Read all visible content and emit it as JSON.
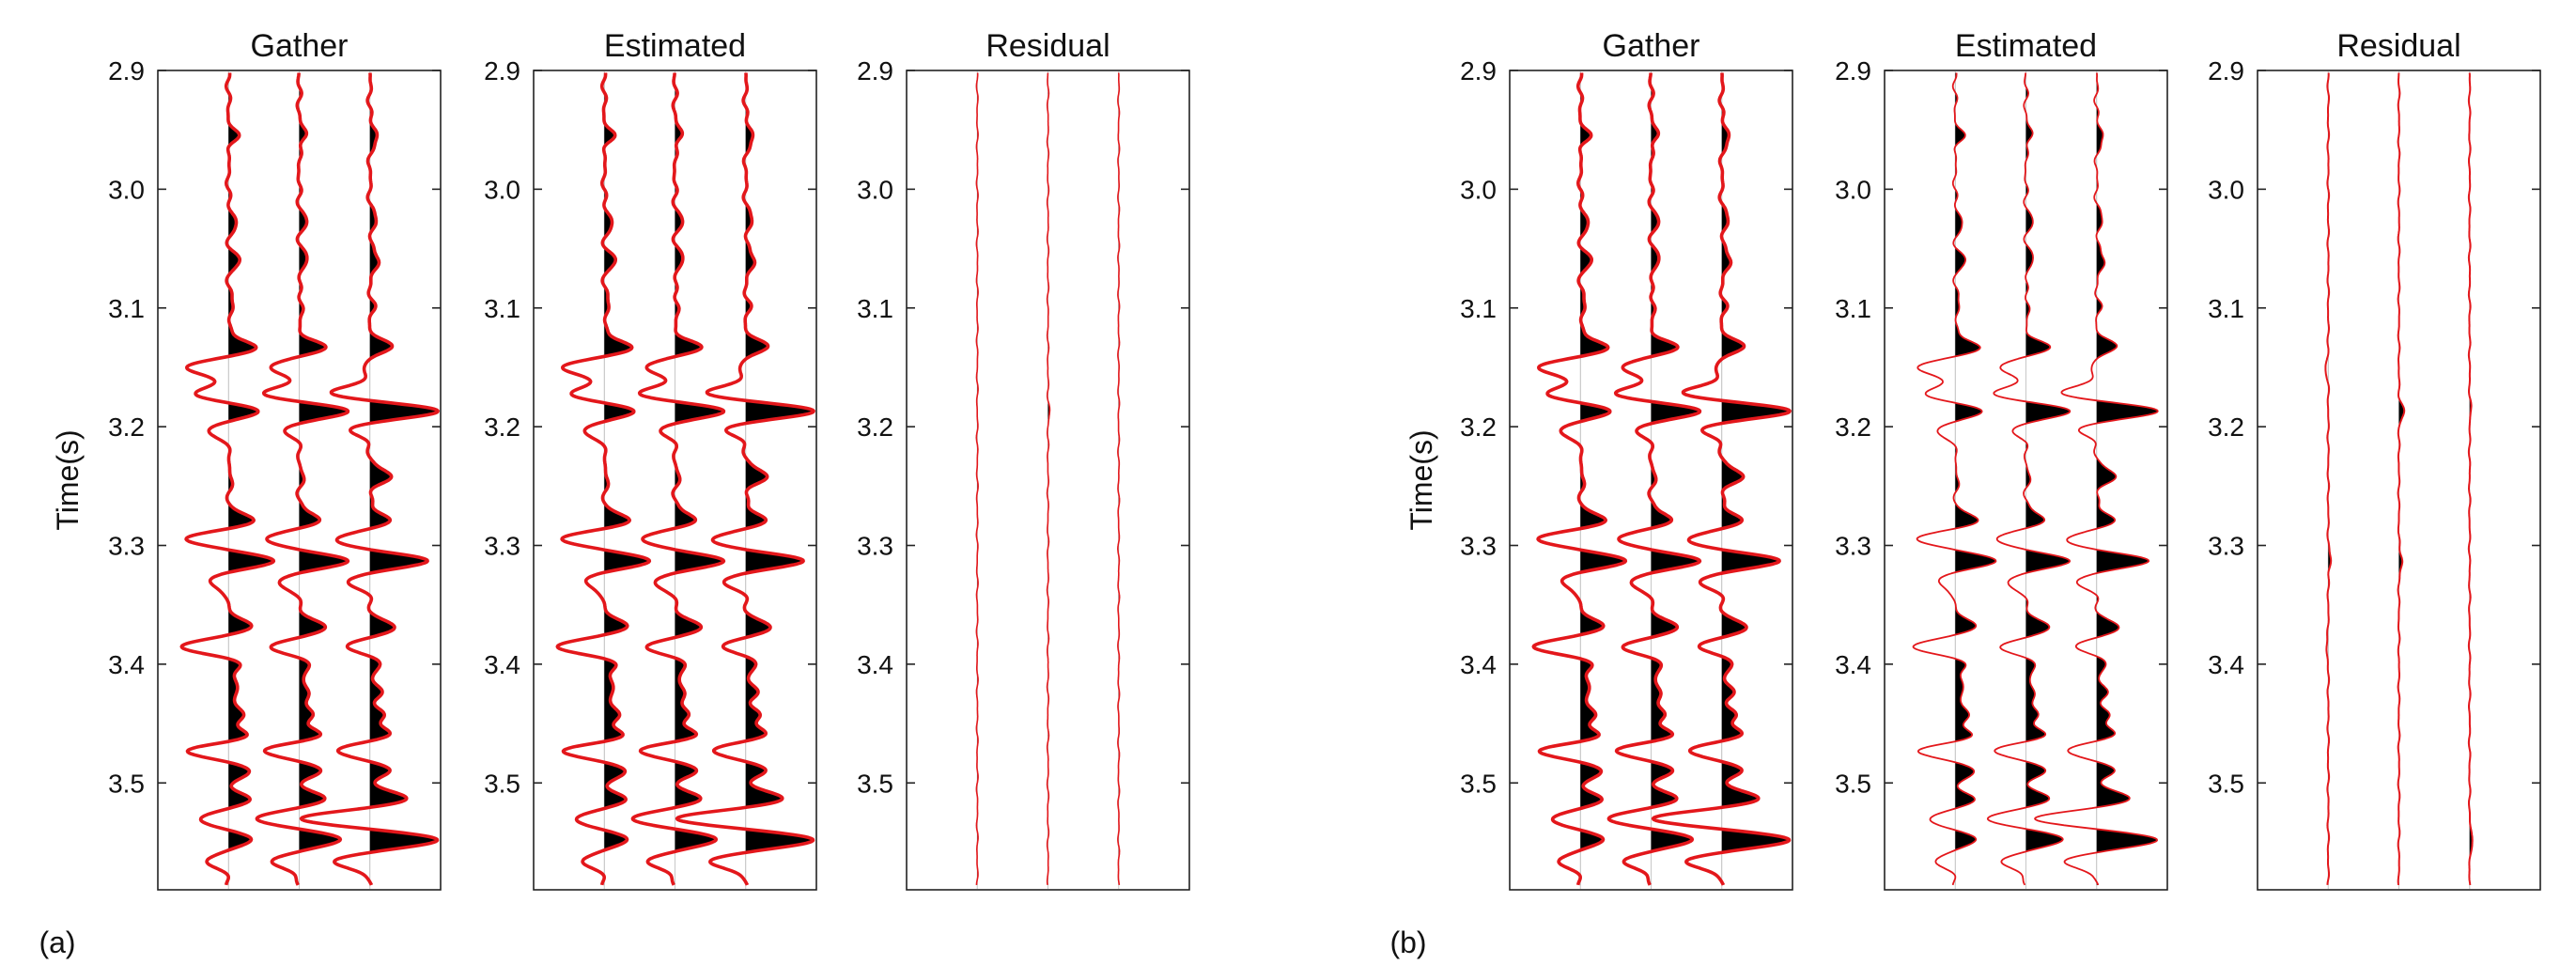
{
  "chart_data": {
    "type": "wiggle",
    "ylabel": "Time(s)",
    "ylim": [
      2.9,
      3.59
    ],
    "yticks": [
      2.9,
      3.0,
      3.1,
      3.2,
      3.3,
      3.4,
      3.5
    ],
    "ytick_labels": [
      "2.9",
      "3.0",
      "3.1",
      "3.2",
      "3.3",
      "3.4",
      "3.5"
    ],
    "traces_per_panel": 3,
    "fill": "positive lobes filled black",
    "colors": {
      "wiggle": "#e3171b",
      "fill": "#000000",
      "axis": "#222222"
    },
    "events": [
      {
        "t": 2.955,
        "amp": [
          0.12,
          0.1,
          0.12
        ]
      },
      {
        "t": 3.027,
        "amp": [
          0.12,
          0.1,
          0.1
        ]
      },
      {
        "t": 3.06,
        "amp": [
          0.15,
          0.12,
          0.15
        ]
      },
      {
        "t": 3.098,
        "amp": [
          0.08,
          0.05,
          0.05
        ]
      },
      {
        "t": 3.133,
        "amp": [
          0.4,
          0.35,
          0.3
        ]
      },
      {
        "t": 3.15,
        "amp": [
          -0.6,
          -0.4,
          -0.1
        ]
      },
      {
        "t": 3.172,
        "amp": [
          -0.5,
          -0.5,
          -0.55
        ]
      },
      {
        "t": 3.187,
        "amp": [
          0.45,
          0.7,
          1.0
        ]
      },
      {
        "t": 3.202,
        "amp": [
          -0.3,
          -0.2,
          -0.3
        ]
      },
      {
        "t": 3.242,
        "amp": [
          0.05,
          0.05,
          0.3
        ]
      },
      {
        "t": 3.279,
        "amp": [
          0.35,
          0.3,
          0.3
        ]
      },
      {
        "t": 3.295,
        "amp": [
          -0.6,
          -0.5,
          -0.5
        ]
      },
      {
        "t": 3.313,
        "amp": [
          0.65,
          0.7,
          0.8
        ]
      },
      {
        "t": 3.33,
        "amp": [
          -0.3,
          -0.3,
          -0.3
        ]
      },
      {
        "t": 3.369,
        "amp": [
          0.35,
          0.4,
          0.35
        ]
      },
      {
        "t": 3.385,
        "amp": [
          -0.7,
          -0.4,
          -0.3
        ]
      },
      {
        "t": 3.4,
        "amp": [
          0.2,
          0.15,
          0.15
        ]
      },
      {
        "t": 3.422,
        "amp": [
          0.15,
          0.15,
          0.15
        ]
      },
      {
        "t": 3.442,
        "amp": [
          0.2,
          0.2,
          0.2
        ]
      },
      {
        "t": 3.46,
        "amp": [
          0.3,
          0.3,
          0.3
        ]
      },
      {
        "t": 3.473,
        "amp": [
          -0.6,
          -0.5,
          -0.5
        ]
      },
      {
        "t": 3.489,
        "amp": [
          0.3,
          0.3,
          0.3
        ]
      },
      {
        "t": 3.514,
        "amp": [
          0.3,
          0.35,
          0.55
        ]
      },
      {
        "t": 3.53,
        "amp": [
          -0.4,
          -0.6,
          -1.0
        ]
      },
      {
        "t": 3.548,
        "amp": [
          0.3,
          0.6,
          1.0
        ]
      },
      {
        "t": 3.566,
        "amp": [
          -0.3,
          -0.4,
          -0.5
        ]
      }
    ],
    "figures": [
      {
        "label": "(a)",
        "panels": [
          {
            "title": "Gather",
            "kind": "gather",
            "amp_scale": 1.0
          },
          {
            "title": "Estimated",
            "kind": "estimated",
            "amp_scale": 1.0
          },
          {
            "title": "Residual",
            "kind": "residual",
            "amp_scale": 1.0
          }
        ],
        "residual_events": [
          {
            "t": 3.187,
            "amp": [
              0.0,
              0.02,
              0.0
            ]
          }
        ]
      },
      {
        "label": "(b)",
        "panels": [
          {
            "title": "Gather",
            "kind": "gather",
            "amp_scale": 1.0
          },
          {
            "title": "Estimated",
            "kind": "estimated",
            "amp_scale": 0.9
          },
          {
            "title": "Residual",
            "kind": "residual",
            "amp_scale": 1.0
          }
        ],
        "residual_events": [
          {
            "t": 3.15,
            "amp": [
              -0.04,
              0.0,
              0.0
            ]
          },
          {
            "t": 3.187,
            "amp": [
              0.0,
              0.07,
              0.02
            ]
          },
          {
            "t": 3.313,
            "amp": [
              0.04,
              0.05,
              0.0
            ]
          },
          {
            "t": 3.385,
            "amp": [
              -0.03,
              0.0,
              0.0
            ]
          },
          {
            "t": 3.548,
            "amp": [
              0.0,
              0.0,
              0.05
            ]
          }
        ]
      }
    ]
  }
}
